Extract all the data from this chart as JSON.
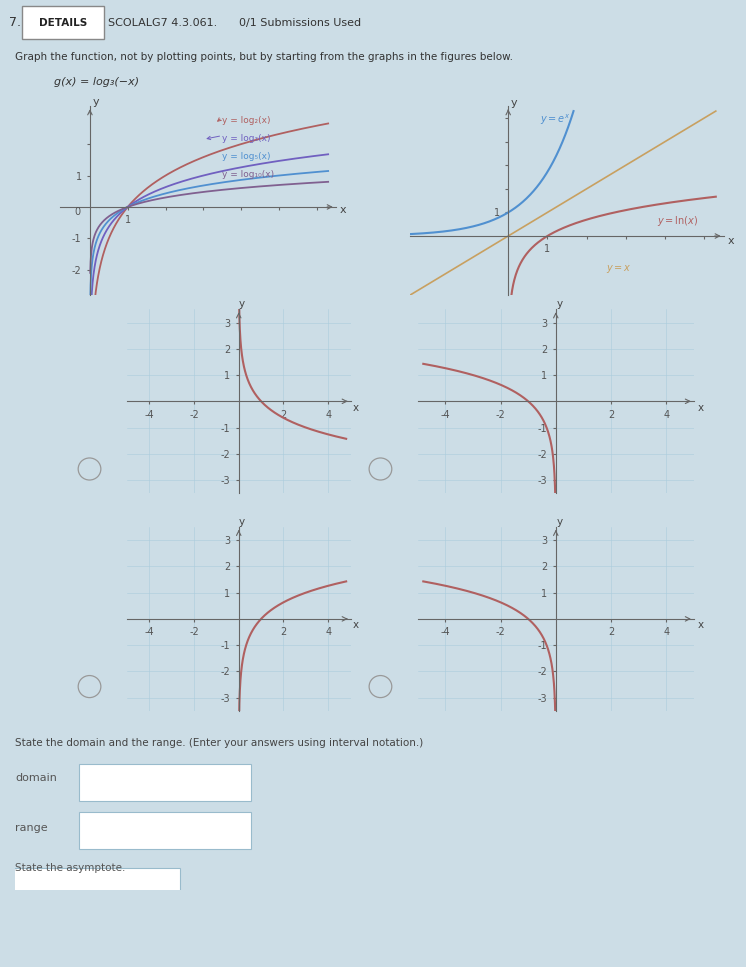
{
  "title_number": "7.",
  "details_label": "DETAILS",
  "course_code": "SCOLALG7 4.3.061.",
  "submissions": "0/1 Submissions Used",
  "instruction": "Graph the function, not by plotting points, but by starting from the graphs in the figures below.",
  "function_label": "g(x) = log₃(−x)",
  "bg_color": "#ccdde6",
  "white_bg": "#ffffff",
  "top_left_labels": [
    "y = log₂(x)",
    "y = log₃(x)",
    "y = log₅(x)",
    "y = log₁₀(x)"
  ],
  "top_left_colors": [
    "#b06060",
    "#7060c0",
    "#5090d0",
    "#806090"
  ],
  "axis_color": "#666666",
  "curve_color": "#b06060",
  "blue_curve": "#5090d0",
  "orange_curve": "#c8a060",
  "footer_text": "State the domain and the range. (Enter your answers using interval notation.)",
  "domain_label": "domain",
  "range_label": "range",
  "asymptote_label": "State the asymptote."
}
